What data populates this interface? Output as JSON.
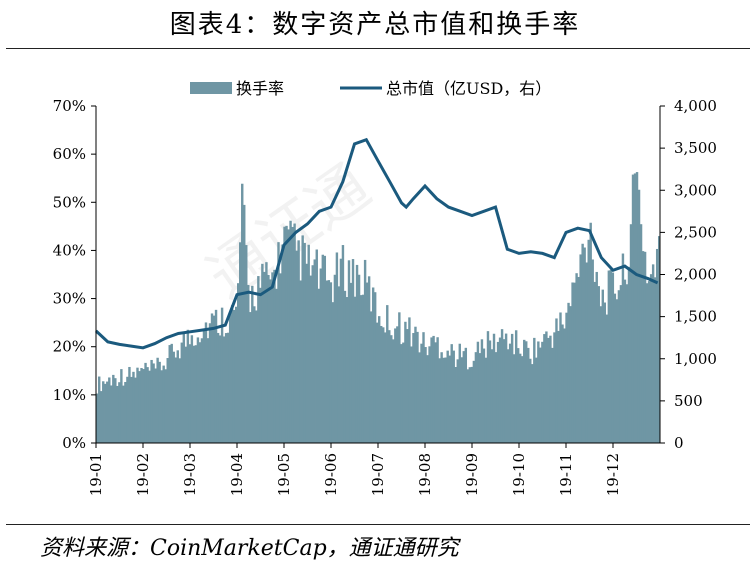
{
  "title": "图表4：数字资产总市值和换手率",
  "source": "资料来源：CoinMarketCap，通证通研究",
  "chart_data": {
    "type": "bar",
    "combo": "bar + line (dual axis)",
    "x_tick_labels": [
      "19-01",
      "19-02",
      "19-03",
      "19-04",
      "19-05",
      "19-06",
      "19-07",
      "19-08",
      "19-09",
      "19-10",
      "19-11",
      "19-12"
    ],
    "left_axis": {
      "ticks": [
        "0%",
        "10%",
        "20%",
        "30%",
        "40%",
        "50%",
        "60%",
        "70%"
      ],
      "ylim": [
        0,
        70
      ],
      "unit": "%"
    },
    "right_axis": {
      "ticks": [
        "0",
        "500",
        "1,000",
        "1,500",
        "2,000",
        "2,500",
        "3,000",
        "3,500",
        "4,000"
      ],
      "ylim": [
        0,
        4000
      ]
    },
    "legend_position": "top-center",
    "colors": {
      "bar": "#6f96a4",
      "line": "#1b5a7e"
    },
    "series": [
      {
        "name": "换手率",
        "type": "bar",
        "axis": "left",
        "x_month": [
          0,
          0.25,
          0.5,
          0.75,
          1,
          1.25,
          1.5,
          1.75,
          2,
          2.25,
          2.5,
          2.75,
          3,
          3.1,
          3.25,
          3.5,
          3.75,
          4,
          4.25,
          4.5,
          4.75,
          5,
          5.25,
          5.5,
          5.75,
          6,
          6.25,
          6.5,
          6.75,
          7,
          7.25,
          7.5,
          7.75,
          8,
          8.25,
          8.5,
          8.75,
          9,
          9.25,
          9.5,
          9.75,
          10,
          10.25,
          10.5,
          10.75,
          11,
          11.25,
          11.5,
          11.75,
          11.95
        ],
        "values": [
          12,
          13,
          14,
          14,
          15,
          15,
          17,
          20,
          22,
          24,
          25,
          26,
          27,
          50,
          30,
          33,
          34,
          42,
          40,
          37,
          35,
          33,
          36,
          35,
          33,
          27,
          25,
          24,
          23,
          20,
          21,
          19,
          18,
          18,
          20,
          21,
          22,
          20,
          19,
          21,
          23,
          26,
          35,
          45,
          30,
          32,
          35,
          55,
          33,
          40
        ]
      },
      {
        "name": "总市值（亿USD，右）",
        "type": "line",
        "axis": "right",
        "x_month": [
          0,
          0.25,
          0.5,
          0.75,
          1,
          1.25,
          1.5,
          1.75,
          2,
          2.25,
          2.5,
          2.75,
          3,
          3.25,
          3.5,
          3.75,
          4,
          4.25,
          4.5,
          4.75,
          5,
          5.25,
          5.5,
          5.75,
          6,
          6.25,
          6.5,
          6.6,
          6.75,
          7,
          7.25,
          7.5,
          7.75,
          8,
          8.25,
          8.5,
          8.75,
          9,
          9.25,
          9.5,
          9.75,
          10,
          10.25,
          10.5,
          10.75,
          11,
          11.25,
          11.5,
          11.75,
          11.95
        ],
        "values": [
          1330,
          1200,
          1170,
          1150,
          1130,
          1180,
          1250,
          1300,
          1320,
          1340,
          1360,
          1400,
          1760,
          1790,
          1760,
          1850,
          2350,
          2500,
          2600,
          2750,
          2800,
          3100,
          3550,
          3600,
          3350,
          3100,
          2850,
          2800,
          2900,
          3050,
          2900,
          2800,
          2750,
          2700,
          2750,
          2800,
          2300,
          2250,
          2270,
          2250,
          2200,
          2500,
          2550,
          2520,
          2200,
          2050,
          2100,
          2000,
          1950,
          1900
        ]
      }
    ]
  }
}
